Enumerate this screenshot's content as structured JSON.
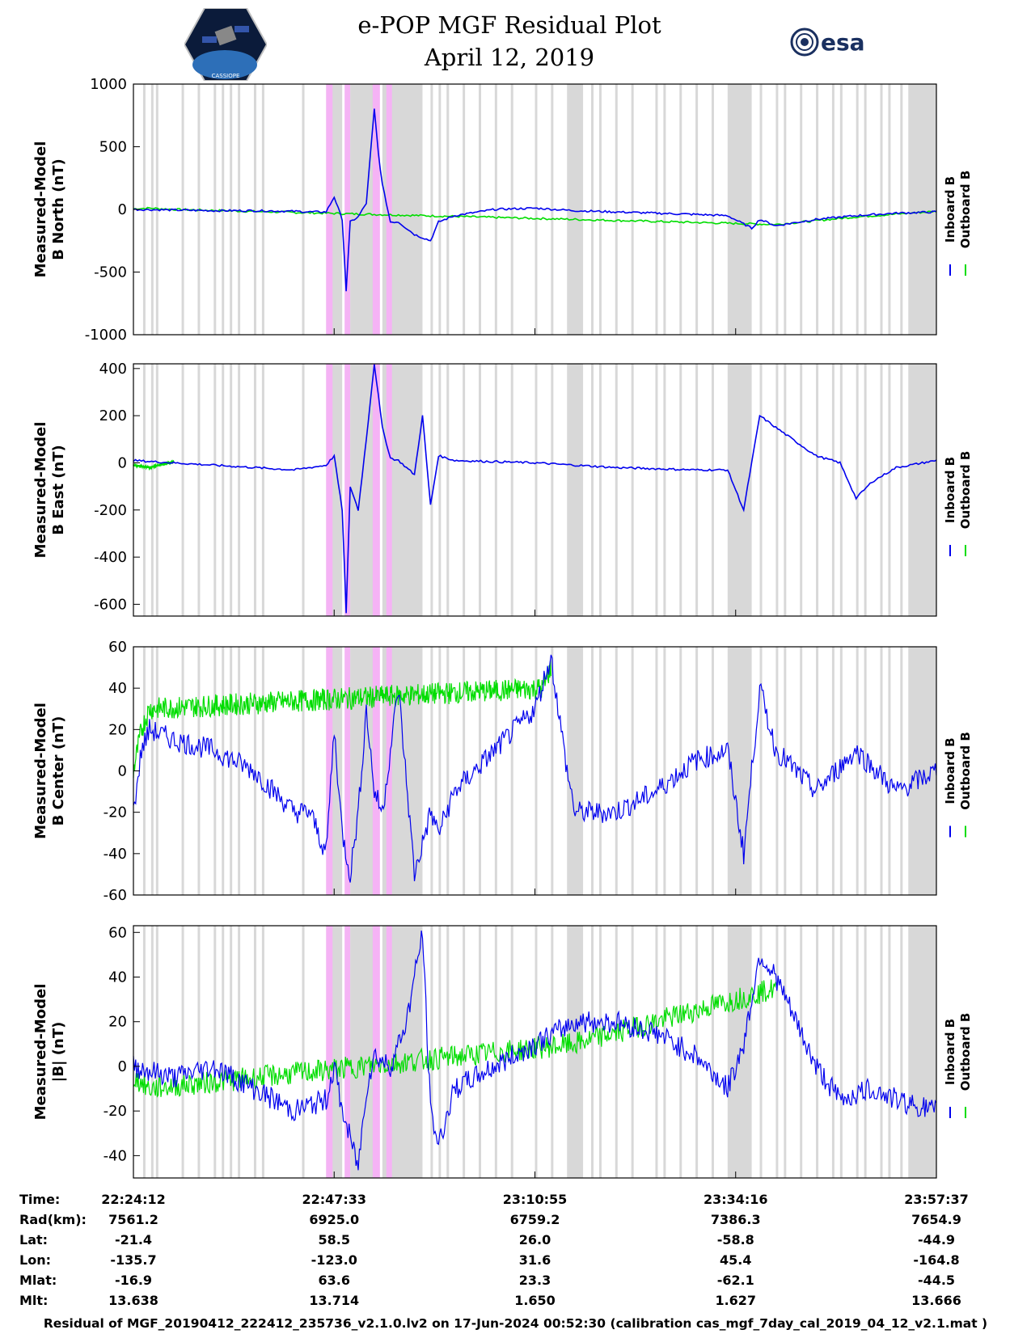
{
  "header": {
    "title_line1": "e-POP MGF Residual Plot",
    "title_line2": "April 12, 2019",
    "left_logo_text": "CASSIOPE",
    "right_logo_text": "esa"
  },
  "legend": {
    "inboard": "Inboard B",
    "outboard": "Outboard B"
  },
  "colors": {
    "inboard": "#0000ee",
    "outboard": "#00dd00",
    "gap": "#d8d8d8",
    "highlight": "#f5b3f5"
  },
  "chart_data": [
    {
      "type": "line",
      "title": "",
      "ylabel": [
        "Measured-Model",
        "B North (nT)"
      ],
      "ylim": [
        -1000,
        1000
      ],
      "yticks": [
        1000,
        500,
        0,
        -500,
        -1000
      ],
      "series": [
        {
          "name": "Inboard B",
          "x": [
            0,
            0.05,
            0.1,
            0.15,
            0.2,
            0.22,
            0.24,
            0.25,
            0.26,
            0.265,
            0.27,
            0.28,
            0.29,
            0.3,
            0.305,
            0.31,
            0.32,
            0.33,
            0.35,
            0.37,
            0.38,
            0.4,
            0.45,
            0.5,
            0.55,
            0.6,
            0.65,
            0.7,
            0.74,
            0.77,
            0.78,
            0.8,
            0.85,
            0.9,
            0.95,
            1.0
          ],
          "values": [
            0,
            -5,
            -10,
            -10,
            -15,
            -20,
            -20,
            100,
            -80,
            -650,
            -100,
            -60,
            50,
            800,
            450,
            200,
            -100,
            -100,
            -200,
            -250,
            -100,
            -50,
            0,
            10,
            -10,
            -20,
            -30,
            -40,
            -50,
            -150,
            -80,
            -130,
            -80,
            -50,
            -30,
            -20
          ]
        },
        {
          "name": "Outboard B",
          "x": [
            0,
            0.02,
            0.05,
            0.8,
            0.9,
            1.0
          ],
          "values": [
            5,
            10,
            0,
            -120,
            -60,
            -15
          ]
        }
      ]
    },
    {
      "type": "line",
      "title": "",
      "ylabel": [
        "Measured-Model",
        "B East (nT)"
      ],
      "ylim": [
        -650,
        420
      ],
      "yticks": [
        400,
        200,
        0,
        -200,
        -400,
        -600
      ],
      "series": [
        {
          "name": "Inboard B",
          "x": [
            0,
            0.1,
            0.15,
            0.2,
            0.22,
            0.24,
            0.25,
            0.26,
            0.265,
            0.27,
            0.28,
            0.29,
            0.3,
            0.31,
            0.32,
            0.33,
            0.35,
            0.36,
            0.37,
            0.38,
            0.4,
            0.5,
            0.55,
            0.6,
            0.7,
            0.74,
            0.76,
            0.78,
            0.8,
            0.85,
            0.88,
            0.9,
            0.92,
            0.95,
            1.0
          ],
          "values": [
            10,
            -10,
            -20,
            -30,
            -20,
            -10,
            30,
            -200,
            -640,
            -100,
            -200,
            100,
            420,
            150,
            20,
            10,
            -50,
            200,
            -180,
            30,
            10,
            0,
            -10,
            -20,
            -30,
            -30,
            -200,
            200,
            150,
            30,
            0,
            -150,
            -80,
            -20,
            10
          ]
        },
        {
          "name": "Outboard B",
          "x": [
            0,
            0.02,
            0.05
          ],
          "values": [
            -10,
            -20,
            5
          ]
        }
      ]
    },
    {
      "type": "line",
      "title": "",
      "ylabel": [
        "Measured-Model",
        "B Center (nT)"
      ],
      "ylim": [
        -60,
        60
      ],
      "yticks": [
        60,
        40,
        20,
        0,
        -20,
        -40,
        -60
      ],
      "series": [
        {
          "name": "Inboard B",
          "x": [
            0,
            0.01,
            0.02,
            0.05,
            0.1,
            0.15,
            0.2,
            0.22,
            0.24,
            0.25,
            0.26,
            0.27,
            0.28,
            0.29,
            0.3,
            0.31,
            0.33,
            0.35,
            0.37,
            0.38,
            0.4,
            0.45,
            0.5,
            0.52,
            0.54,
            0.55,
            0.6,
            0.65,
            0.7,
            0.74,
            0.76,
            0.78,
            0.8,
            0.85,
            0.9,
            0.95,
            1.0
          ],
          "values": [
            -20,
            10,
            20,
            15,
            10,
            0,
            -20,
            -20,
            -40,
            20,
            -30,
            -50,
            -20,
            30,
            -10,
            -20,
            40,
            -50,
            -20,
            -30,
            -10,
            10,
            30,
            55,
            0,
            -20,
            -20,
            -10,
            5,
            10,
            -40,
            40,
            10,
            -10,
            10,
            -10,
            0
          ]
        },
        {
          "name": "Outboard B",
          "x": [
            0,
            0.01,
            0.02,
            0.51,
            0.52
          ],
          "values": [
            0,
            20,
            30,
            40,
            50
          ]
        }
      ]
    },
    {
      "type": "line",
      "title": "",
      "ylabel": [
        "Measured-Model",
        "|B| (nT)"
      ],
      "ylim": [
        -50,
        63
      ],
      "yticks": [
        60,
        40,
        20,
        0,
        -20,
        -40
      ],
      "series": [
        {
          "name": "Inboard B",
          "x": [
            0,
            0.05,
            0.1,
            0.15,
            0.2,
            0.24,
            0.25,
            0.26,
            0.28,
            0.29,
            0.3,
            0.32,
            0.34,
            0.36,
            0.37,
            0.38,
            0.4,
            0.45,
            0.5,
            0.55,
            0.6,
            0.65,
            0.7,
            0.74,
            0.76,
            0.78,
            0.8,
            0.85,
            0.88,
            0.92,
            0.95,
            1.0
          ],
          "values": [
            0,
            -5,
            0,
            -10,
            -20,
            -15,
            0,
            -20,
            -45,
            -10,
            5,
            0,
            20,
            60,
            -20,
            -35,
            -10,
            0,
            10,
            20,
            20,
            15,
            5,
            -10,
            10,
            50,
            40,
            0,
            -15,
            -10,
            -15,
            -20
          ]
        },
        {
          "name": "Outboard B",
          "x": [
            0,
            0.02,
            0.55,
            0.8
          ],
          "values": [
            -5,
            -10,
            10,
            35
          ]
        }
      ]
    }
  ],
  "gap_regions": [
    [
      0.24,
      0.26
    ],
    [
      0.27,
      0.3
    ],
    [
      0.31,
      0.36
    ],
    [
      0.54,
      0.56
    ],
    [
      0.74,
      0.77
    ],
    [
      0.965,
      1.0
    ]
  ],
  "highlight_regions": [
    [
      0.24,
      0.248
    ],
    [
      0.263,
      0.27
    ],
    [
      0.298,
      0.307
    ],
    [
      0.315,
      0.322
    ]
  ],
  "gap_lines": [
    0.012,
    0.022,
    0.028,
    0.06,
    0.08,
    0.1,
    0.11,
    0.12,
    0.13,
    0.15,
    0.16,
    0.21,
    0.37,
    0.38,
    0.39,
    0.41,
    0.43,
    0.45,
    0.47,
    0.5,
    0.52,
    0.57,
    0.58,
    0.6,
    0.62,
    0.65,
    0.66,
    0.68,
    0.7,
    0.72,
    0.78,
    0.8,
    0.81,
    0.83,
    0.85,
    0.87,
    0.88,
    0.9,
    0.91,
    0.93,
    0.94,
    0.955
  ],
  "x_ticks": [
    0,
    0.25,
    0.5,
    0.75,
    1.0
  ],
  "info_table": {
    "labels": [
      "Time:",
      "Rad(km):",
      "Lat:",
      "Lon:",
      "Mlat:",
      "Mlt:"
    ],
    "columns": [
      [
        "22:24:12",
        "7561.2",
        "-21.4",
        "-135.7",
        "-16.9",
        "13.638"
      ],
      [
        "22:47:33",
        "6925.0",
        "58.5",
        "-123.0",
        "63.6",
        "13.714"
      ],
      [
        "23:10:55",
        "6759.2",
        "26.0",
        "31.6",
        "23.3",
        "1.650"
      ],
      [
        "23:34:16",
        "7386.3",
        "-58.8",
        "45.4",
        "-62.1",
        "1.627"
      ],
      [
        "23:57:37",
        "7654.9",
        "-44.9",
        "-164.8",
        "-44.5",
        "13.666"
      ]
    ]
  },
  "footer": "Residual of MGF_20190412_222412_235736_v2.1.0.lv2 on 17-Jun-2024 00:52:30 (calibration cas_mgf_7day_cal_2019_04_12_v2.1.mat )"
}
